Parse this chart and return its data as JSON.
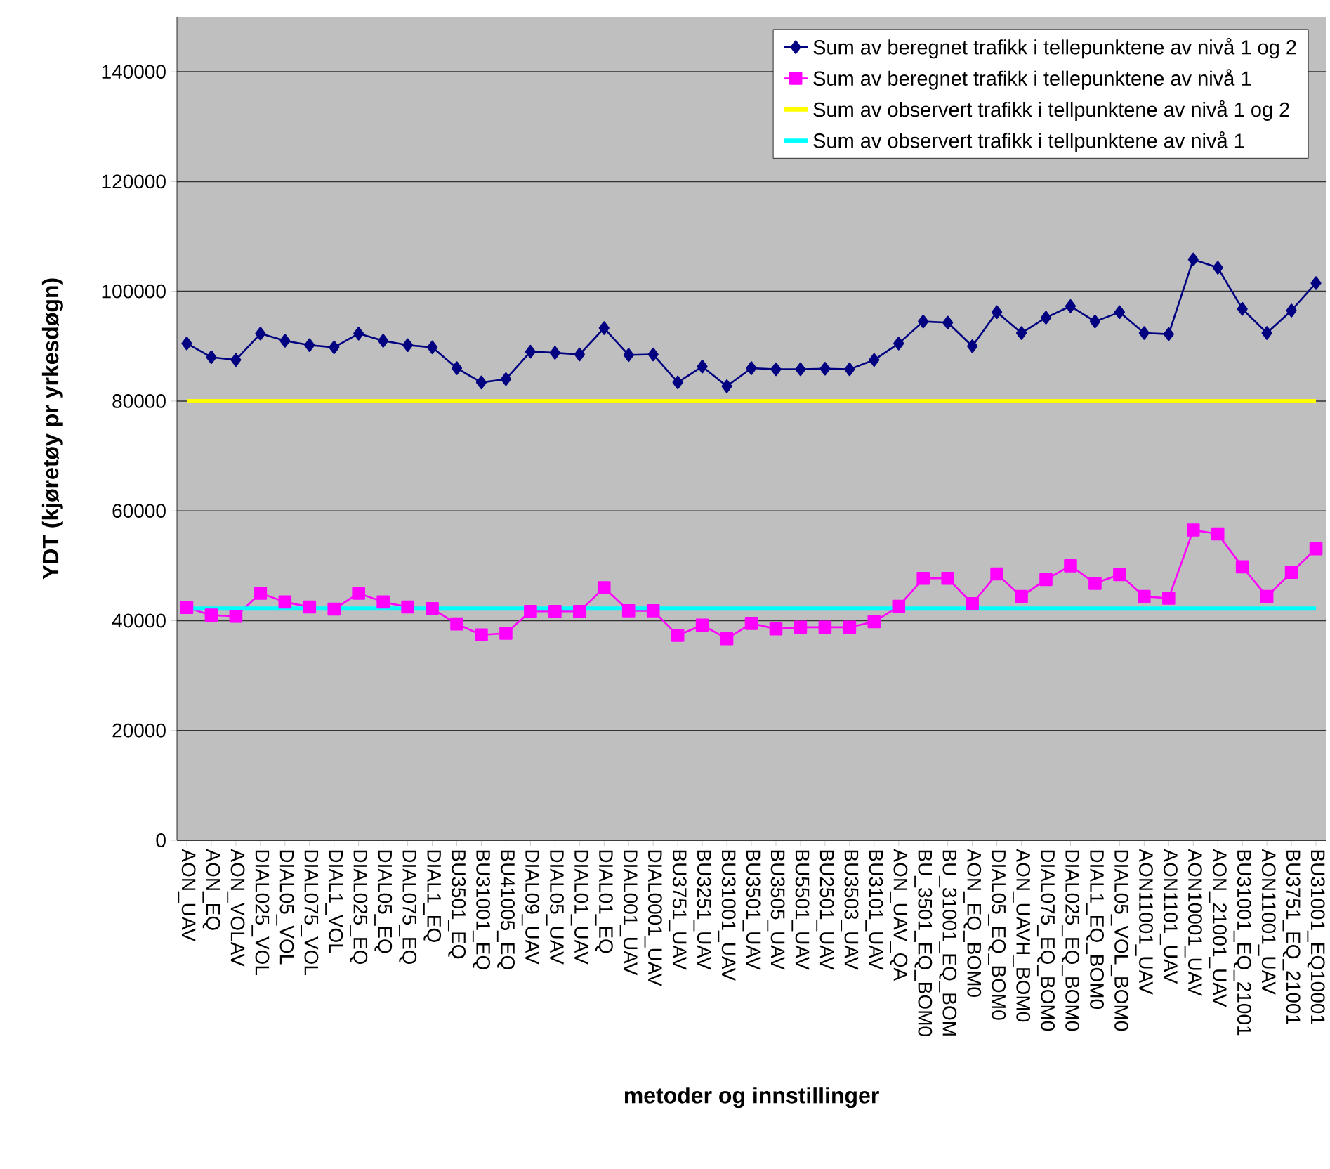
{
  "chart_data": {
    "type": "line",
    "xlabel": "metoder og innstillinger",
    "ylabel": "YDT (kjøretøy pr yrkesdøgn)",
    "categories": [
      "AON_UAV",
      "AON_EQ",
      "AON_VOLAV",
      "DIAL025_VOL",
      "DIAL05_VOL",
      "DIAL075_VOL",
      "DIAL1_VOL",
      "DIAL025_EQ",
      "DIAL05_EQ",
      "DIAL075_EQ",
      "DIAL1_EQ",
      "BU3501_EQ",
      "BU31001_EQ",
      "BU41005_EQ",
      "DIAL09_UAV",
      "DIAL05_UAV",
      "DIAL01_UAV",
      "DIAL01_EQ",
      "DIAL001_UAV",
      "DIAL0001_UAV",
      "BU3751_UAV",
      "BU3251_UAV",
      "BU31001_UAV",
      "BU3501_UAV",
      "BU3505_UAV",
      "BU5501_UAV",
      "BU2501_UAV",
      "BU3503_UAV",
      "BU3101_UAV",
      "AON_UAV_QA",
      "BU_3501_EQ_BOM0",
      "BU_31001_EQ_BOM",
      "AON_EQ_BOM0",
      "DIAL05_EQ_BOM0",
      "AON_UAVH_BOM0",
      "DIAL075_EQ_BOM0",
      "DIAL025_EQ_BOM0",
      "DIAL1_EQ_BOM0",
      "DIAL05_VOL_BOM0",
      "AON11001_UAV",
      "AON1101_UAV",
      "AON10001_UAV",
      "AON_21001_UAV",
      "BU31001_EQ_21001",
      "AON11001_UAV",
      "BU3751_EQ_21001",
      "BU31001_EQ10001"
    ],
    "series": [
      {
        "name": "Sum av beregnet trafikk i tellepunktene av nivå 1 og 2",
        "color": "#000080",
        "marker": "diamond",
        "values": [
          90500,
          88000,
          87500,
          92300,
          91000,
          90200,
          89800,
          92300,
          91000,
          90200,
          89800,
          86000,
          83400,
          84000,
          89000,
          88800,
          88500,
          93300,
          88400,
          88500,
          83400,
          86300,
          82700,
          86000,
          85800,
          85800,
          85900,
          85800,
          87500,
          90500,
          94500,
          94300,
          90000,
          96200,
          92400,
          95200,
          97300,
          94500,
          96200,
          92400,
          92200,
          105800,
          104300,
          96800,
          92400,
          96500,
          101500
        ]
      },
      {
        "name": "Sum av beregnet trafikk i tellepunktene av nivå 1",
        "color": "#ff00ff",
        "marker": "square",
        "values": [
          42400,
          41000,
          40800,
          45000,
          43400,
          42500,
          42100,
          45000,
          43400,
          42500,
          42200,
          39400,
          37400,
          37700,
          41700,
          41700,
          41700,
          46000,
          41800,
          41800,
          37300,
          39200,
          36700,
          39500,
          38500,
          38800,
          38800,
          38800,
          39800,
          42600,
          47700,
          47700,
          43100,
          48500,
          44400,
          47500,
          50000,
          46800,
          48400,
          44400,
          44100,
          56500,
          55800,
          49800,
          44400,
          48800,
          53100
        ]
      },
      {
        "name": "Sum av observert trafikk i tellpunktene av nivå 1 og 2",
        "color": "#ffff00",
        "marker": "none",
        "values": [
          80000,
          80000,
          80000,
          80000,
          80000,
          80000,
          80000,
          80000,
          80000,
          80000,
          80000,
          80000,
          80000,
          80000,
          80000,
          80000,
          80000,
          80000,
          80000,
          80000,
          80000,
          80000,
          80000,
          80000,
          80000,
          80000,
          80000,
          80000,
          80000,
          80000,
          80000,
          80000,
          80000,
          80000,
          80000,
          80000,
          80000,
          80000,
          80000,
          80000,
          80000,
          80000,
          80000,
          80000,
          80000,
          80000,
          80000
        ]
      },
      {
        "name": "Sum av observert trafikk i tellpunktene av nivå 1",
        "color": "#00ffff",
        "marker": "none",
        "values": [
          42200,
          42200,
          42200,
          42200,
          42200,
          42200,
          42200,
          42200,
          42200,
          42200,
          42200,
          42200,
          42200,
          42200,
          42200,
          42200,
          42200,
          42200,
          42200,
          42200,
          42200,
          42200,
          42200,
          42200,
          42200,
          42200,
          42200,
          42200,
          42200,
          42200,
          42200,
          42200,
          42200,
          42200,
          42200,
          42200,
          42200,
          42200,
          42200,
          42200,
          42200,
          42200,
          42200,
          42200,
          42200,
          42200,
          42200
        ]
      }
    ],
    "ylim": [
      0,
      150000
    ],
    "yticks": [
      0,
      20000,
      40000,
      60000,
      80000,
      100000,
      120000,
      140000
    ],
    "grid": "y",
    "legend": "top right"
  }
}
